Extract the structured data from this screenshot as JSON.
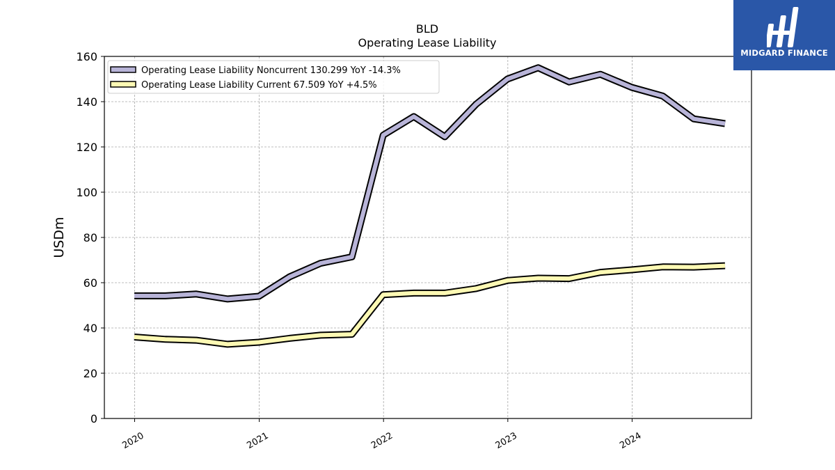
{
  "brand": {
    "name": "MIDGARD FINANCE",
    "color": "#2a57a8"
  },
  "chart_data": {
    "type": "line",
    "title": "BLD",
    "subtitle": "Operating Lease Liability",
    "xlabel": "",
    "ylabel": "USDm",
    "ylim": [
      0,
      160
    ],
    "yticks": [
      0,
      20,
      40,
      60,
      80,
      100,
      120,
      140,
      160
    ],
    "xticks": [
      "2020",
      "2021",
      "2022",
      "2023",
      "2024"
    ],
    "x": [
      "2019-12-31",
      "2020-03-31",
      "2020-06-30",
      "2020-09-30",
      "2020-12-31",
      "2021-03-31",
      "2021-06-30",
      "2021-09-30",
      "2021-12-31",
      "2022-03-31",
      "2022-06-30",
      "2022-09-30",
      "2022-12-31",
      "2023-03-31",
      "2023-06-30",
      "2023-09-30",
      "2023-12-31",
      "2024-03-31",
      "2024-06-30",
      "2024-09-30"
    ],
    "grid": true,
    "legend_position": "top-left",
    "series": [
      {
        "name": "Operating Lease Liability Noncurrent  130.299 YoY -14.3%",
        "color": "#b8b4d8",
        "values": [
          54.2,
          54.2,
          55.0,
          52.8,
          54.0,
          62.6,
          68.6,
          71.4,
          125.2,
          133.4,
          124.5,
          138.9,
          150.0,
          155.0,
          148.7,
          152.1,
          146.3,
          142.5,
          132.4,
          130.3
        ]
      },
      {
        "name": "Operating Lease Liability Current  67.509 YoY +4.5%",
        "color": "#fdf9b4",
        "values": [
          36.0,
          35.0,
          34.6,
          32.8,
          33.7,
          35.4,
          36.8,
          37.2,
          54.7,
          55.4,
          55.4,
          57.4,
          61.0,
          62.0,
          61.8,
          64.6,
          65.7,
          67.0,
          66.9,
          67.5
        ]
      }
    ]
  }
}
